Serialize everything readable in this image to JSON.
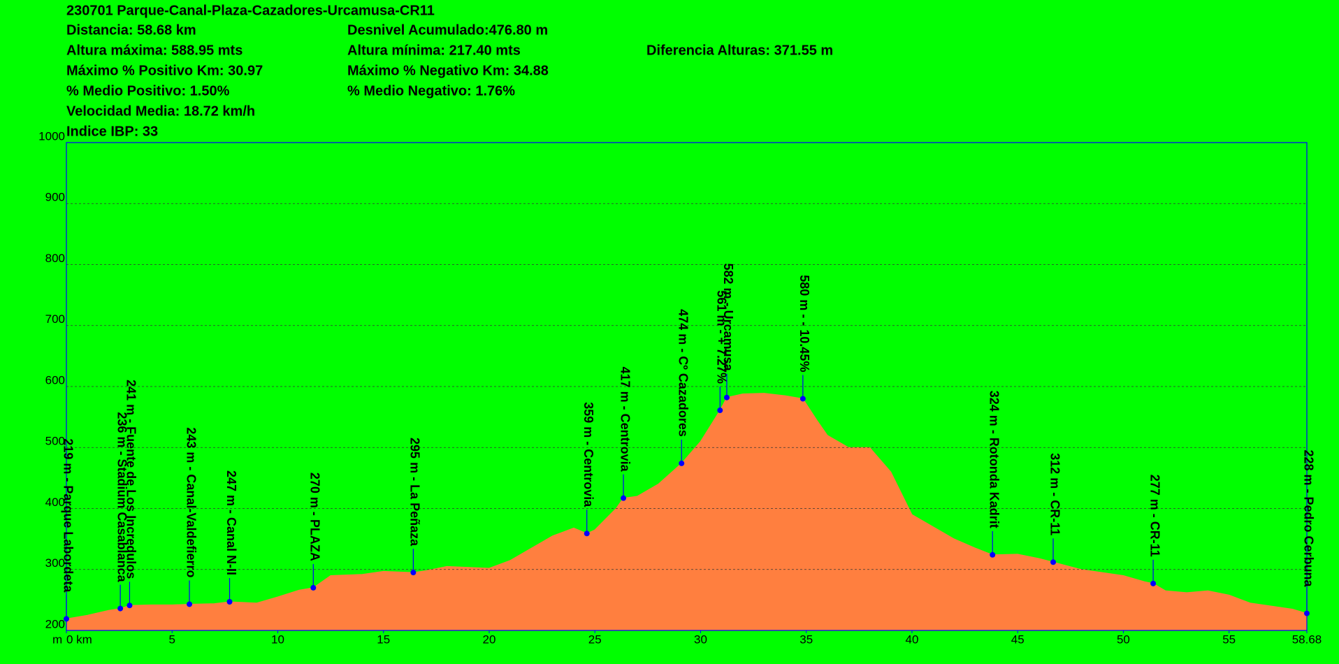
{
  "header": {
    "title": "230701 Parque-Canal-Plaza-Cazadores-Urcamusa-CR11",
    "lines": [
      [
        "Distancia: 58.68 km",
        "Desnivel Acumulado:476.80 m"
      ],
      [
        "Altura máxima: 588.95 mts",
        "Altura mínima: 217.40 mts",
        "Diferencia Alturas:  371.55 m"
      ],
      [
        "Máximo % Positivo Km: 30.97",
        " Máximo % Negativo Km: 34.88"
      ],
      [
        "% Medio Positivo: 1.50%",
        "% Medio Negativo: 1.76%"
      ],
      [
        "Velocidad Media: 18.72 km/h"
      ],
      [
        "Indice IBP: 33"
      ]
    ]
  },
  "chart_data": {
    "type": "area",
    "color": "#ff7f3f",
    "ylabel": "m",
    "grid": true,
    "x": [
      0,
      1,
      2,
      2.55,
      2.99,
      4,
      5,
      5.82,
      7,
      7.72,
      9,
      10,
      11,
      11.68,
      12.5,
      14,
      15,
      16.41,
      17,
      18,
      20,
      21,
      22,
      23,
      24,
      24.62,
      25,
      26,
      26.35,
      27,
      28,
      29.1,
      30,
      30.92,
      31.24,
      32,
      33,
      34,
      34.84,
      35.5,
      36,
      37,
      38,
      39,
      40,
      41,
      42,
      43,
      43.81,
      45,
      46,
      46.68,
      48,
      49,
      50,
      51,
      51.41,
      52,
      53,
      54,
      55,
      56,
      57,
      58,
      58.68
    ],
    "values": [
      219,
      225,
      233,
      236,
      241,
      242,
      242,
      243,
      244,
      247,
      245,
      255,
      266,
      270,
      290,
      292,
      297,
      295,
      298,
      305,
      302,
      315,
      335,
      355,
      368,
      359,
      365,
      400,
      417,
      420,
      440,
      474,
      510,
      561,
      582,
      588,
      589,
      585,
      580,
      545,
      520,
      500,
      500,
      460,
      390,
      370,
      350,
      335,
      324,
      325,
      318,
      312,
      300,
      295,
      290,
      280,
      277,
      265,
      262,
      265,
      258,
      245,
      240,
      235,
      228
    ],
    "xlim": [
      0,
      58.68
    ],
    "ylim": [
      200,
      1000
    ],
    "xticks": [
      {
        "value": 0,
        "label": "0 km"
      },
      5,
      10,
      15,
      20,
      25,
      30,
      35,
      40,
      45,
      50,
      55,
      58.68
    ],
    "yticks": [
      200,
      300,
      400,
      500,
      600,
      700,
      800,
      900,
      1000
    ],
    "waypoints": [
      {
        "x": 0,
        "value": 219,
        "label": "219 m - Parque Labordeta"
      },
      {
        "x": 2.55,
        "value": 236,
        "label": "236 m - Stadium Casablanca"
      },
      {
        "x": 2.99,
        "value": 241,
        "label": "241 m - Fuente de Los Incredulos"
      },
      {
        "x": 5.82,
        "value": 243,
        "label": "243 m - Canal-Valdefierro"
      },
      {
        "x": 7.72,
        "value": 247,
        "label": "247 m - Canal N-II"
      },
      {
        "x": 11.68,
        "value": 270,
        "label": "270 m - PLAZA"
      },
      {
        "x": 16.41,
        "value": 295,
        "label": "295 m - La Peñaza"
      },
      {
        "x": 24.62,
        "value": 359,
        "label": "359 m - Centrovia"
      },
      {
        "x": 26.35,
        "value": 417,
        "label": "417 m - Centrovia"
      },
      {
        "x": 29.1,
        "value": 474,
        "label": "474 m - Cº Cazadores"
      },
      {
        "x": 30.92,
        "value": 561,
        "label": "561 m - + 7.27%"
      },
      {
        "x": 31.24,
        "value": 582,
        "label": "582 m - Urcamusa"
      },
      {
        "x": 34.84,
        "value": 580,
        "label": "580 m - - 10.45%"
      },
      {
        "x": 43.81,
        "value": 324,
        "label": "324 m - Rotonda Kadrit"
      },
      {
        "x": 46.68,
        "value": 312,
        "label": "312 m - CR-11"
      },
      {
        "x": 51.41,
        "value": 277,
        "label": "277 m - CR-11"
      },
      {
        "x": 58.68,
        "value": 228,
        "label": "228 m - Pedro Cerbuna"
      }
    ]
  }
}
